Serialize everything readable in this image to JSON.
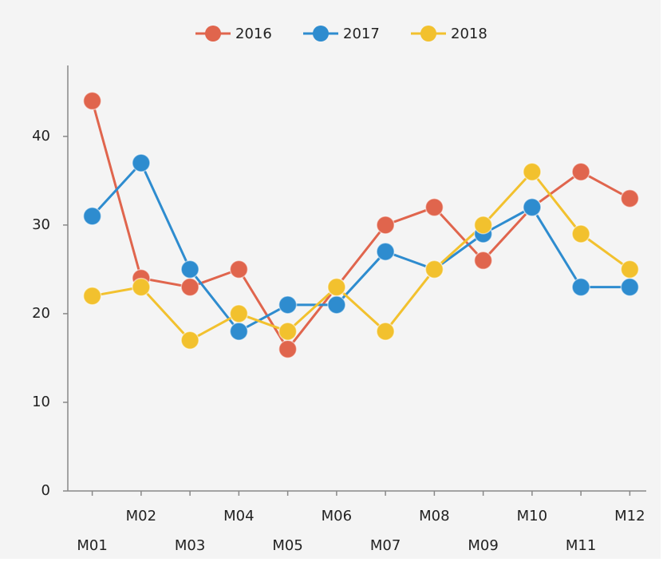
{
  "chart_data": {
    "type": "line",
    "categories": [
      "M01",
      "M02",
      "M03",
      "M04",
      "M05",
      "M06",
      "M07",
      "M08",
      "M09",
      "M10",
      "M11",
      "M12"
    ],
    "series": [
      {
        "name": "2016",
        "color": "#e0654d",
        "values": [
          44,
          24,
          23,
          25,
          16,
          23,
          30,
          32,
          26,
          32,
          36,
          33
        ]
      },
      {
        "name": "2017",
        "color": "#2e8ccf",
        "values": [
          31,
          37,
          25,
          18,
          21,
          21,
          27,
          25,
          29,
          32,
          23,
          23
        ]
      },
      {
        "name": "2018",
        "color": "#f2c12e",
        "values": [
          22,
          23,
          17,
          20,
          18,
          23,
          18,
          25,
          30,
          36,
          29,
          25
        ]
      }
    ],
    "ylim": [
      0,
      48
    ],
    "yticks": [
      0,
      10,
      20,
      30,
      40
    ],
    "legend": "top"
  }
}
